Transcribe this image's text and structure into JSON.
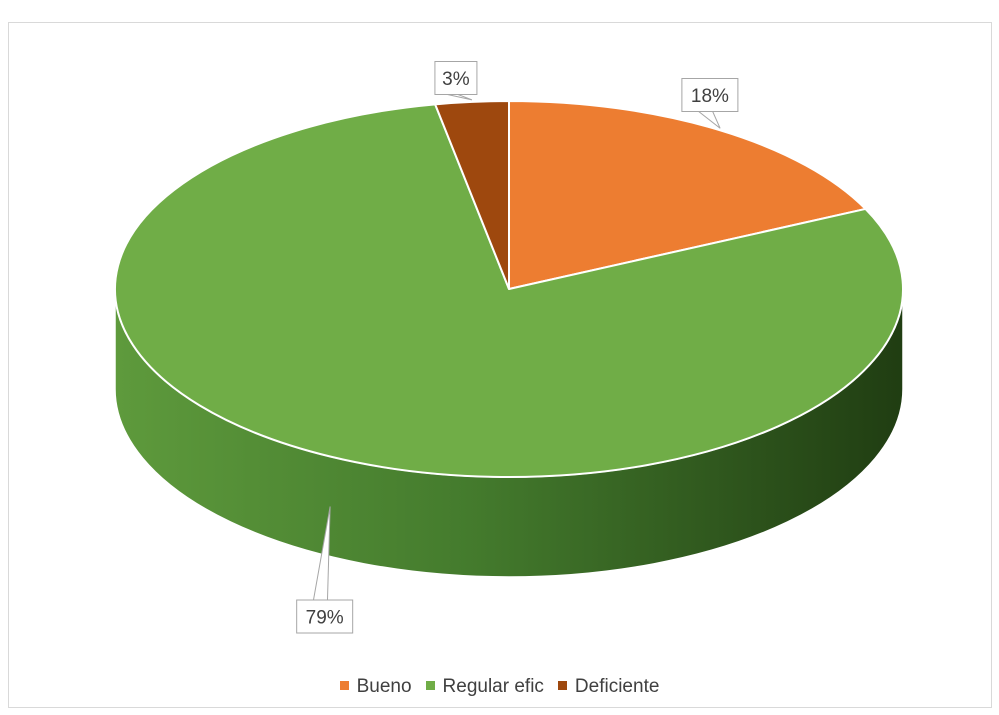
{
  "chart_data": {
    "type": "pie",
    "style": "3d",
    "title": "",
    "slices": [
      {
        "name": "Bueno",
        "value": 18,
        "label": "18%",
        "color": "#ED7D31"
      },
      {
        "name": "Regular efic",
        "value": 79,
        "label": "79%",
        "color": "#70AD47"
      },
      {
        "name": "Deficiente",
        "value": 3,
        "label": "3%",
        "color": "#9E480E"
      }
    ],
    "legend": {
      "position": "bottom"
    }
  }
}
